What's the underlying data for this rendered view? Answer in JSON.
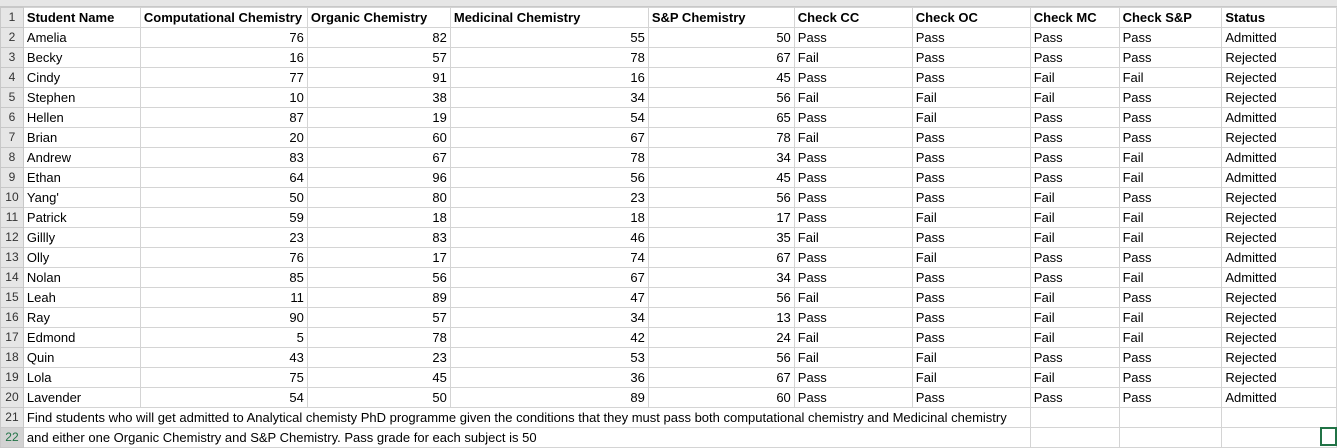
{
  "headers": [
    "Student Name",
    "Computational Chemistry",
    "Organic Chemistry",
    "Medicinal Chemistry",
    "S&P Chemistry",
    "Check CC",
    "Check OC",
    "Check MC",
    "Check S&P",
    "Status"
  ],
  "students": [
    {
      "name": "Amelia",
      "cc": "76",
      "oc": "82",
      "mc": "55",
      "sp": "50",
      "check_cc": "Pass",
      "check_oc": "Pass",
      "check_mc": "Pass",
      "check_sp": "Pass",
      "status": "Admitted"
    },
    {
      "name": "Becky",
      "cc": "16",
      "oc": "57",
      "mc": "78",
      "sp": "67",
      "check_cc": "Fail",
      "check_oc": "Pass",
      "check_mc": "Pass",
      "check_sp": "Pass",
      "status": "Rejected"
    },
    {
      "name": "Cindy",
      "cc": "77",
      "oc": "91",
      "mc": "16",
      "sp": "45",
      "check_cc": "Pass",
      "check_oc": "Pass",
      "check_mc": "Fail",
      "check_sp": "Fail",
      "status": "Rejected"
    },
    {
      "name": "Stephen",
      "cc": "10",
      "oc": "38",
      "mc": "34",
      "sp": "56",
      "check_cc": "Fail",
      "check_oc": "Fail",
      "check_mc": "Fail",
      "check_sp": "Pass",
      "status": "Rejected"
    },
    {
      "name": "Hellen",
      "cc": "87",
      "oc": "19",
      "mc": "54",
      "sp": "65",
      "check_cc": "Pass",
      "check_oc": "Fail",
      "check_mc": "Pass",
      "check_sp": "Pass",
      "status": "Admitted"
    },
    {
      "name": "Brian",
      "cc": "20",
      "oc": "60",
      "mc": "67",
      "sp": "78",
      "check_cc": "Fail",
      "check_oc": "Pass",
      "check_mc": "Pass",
      "check_sp": "Pass",
      "status": "Rejected"
    },
    {
      "name": "Andrew",
      "cc": "83",
      "oc": "67",
      "mc": "78",
      "sp": "34",
      "check_cc": "Pass",
      "check_oc": "Pass",
      "check_mc": "Pass",
      "check_sp": "Fail",
      "status": "Admitted"
    },
    {
      "name": "Ethan",
      "cc": "64",
      "oc": "96",
      "mc": "56",
      "sp": "45",
      "check_cc": "Pass",
      "check_oc": "Pass",
      "check_mc": "Pass",
      "check_sp": "Fail",
      "status": "Admitted"
    },
    {
      "name": "Yang'",
      "cc": "50",
      "oc": "80",
      "mc": "23",
      "sp": "56",
      "check_cc": "Pass",
      "check_oc": "Pass",
      "check_mc": "Fail",
      "check_sp": "Pass",
      "status": "Rejected"
    },
    {
      "name": "Patrick",
      "cc": "59",
      "oc": "18",
      "mc": "18",
      "sp": "17",
      "check_cc": "Pass",
      "check_oc": "Fail",
      "check_mc": "Fail",
      "check_sp": "Fail",
      "status": "Rejected"
    },
    {
      "name": "Gillly",
      "cc": "23",
      "oc": "83",
      "mc": "46",
      "sp": "35",
      "check_cc": "Fail",
      "check_oc": "Pass",
      "check_mc": "Fail",
      "check_sp": "Fail",
      "status": "Rejected"
    },
    {
      "name": "Olly",
      "cc": "76",
      "oc": "17",
      "mc": "74",
      "sp": "67",
      "check_cc": "Pass",
      "check_oc": "Fail",
      "check_mc": "Pass",
      "check_sp": "Pass",
      "status": "Admitted"
    },
    {
      "name": "Nolan",
      "cc": "85",
      "oc": "56",
      "mc": "67",
      "sp": "34",
      "check_cc": "Pass",
      "check_oc": "Pass",
      "check_mc": "Pass",
      "check_sp": "Fail",
      "status": "Admitted"
    },
    {
      "name": "Leah",
      "cc": "11",
      "oc": "89",
      "mc": "47",
      "sp": "56",
      "check_cc": "Fail",
      "check_oc": "Pass",
      "check_mc": "Fail",
      "check_sp": "Pass",
      "status": "Rejected"
    },
    {
      "name": "Ray",
      "cc": "90",
      "oc": "57",
      "mc": "34",
      "sp": "13",
      "check_cc": "Pass",
      "check_oc": "Pass",
      "check_mc": "Fail",
      "check_sp": "Fail",
      "status": "Rejected"
    },
    {
      "name": "Edmond",
      "cc": "5",
      "oc": "78",
      "mc": "42",
      "sp": "24",
      "check_cc": "Fail",
      "check_oc": "Pass",
      "check_mc": "Fail",
      "check_sp": "Fail",
      "status": "Rejected"
    },
    {
      "name": "Quin",
      "cc": "43",
      "oc": "23",
      "mc": "53",
      "sp": "56",
      "check_cc": "Fail",
      "check_oc": "Fail",
      "check_mc": "Pass",
      "check_sp": "Pass",
      "status": "Rejected"
    },
    {
      "name": "Lola",
      "cc": "75",
      "oc": "45",
      "mc": "36",
      "sp": "67",
      "check_cc": "Pass",
      "check_oc": "Fail",
      "check_mc": "Fail",
      "check_sp": "Pass",
      "status": "Rejected"
    },
    {
      "name": "Lavender",
      "cc": "54",
      "oc": "50",
      "mc": "89",
      "sp": "60",
      "check_cc": "Pass",
      "check_oc": "Pass",
      "check_mc": "Pass",
      "check_sp": "Pass",
      "status": "Admitted"
    }
  ],
  "notes": [
    "Find students who will get admitted to Analytical chemisty PhD programme given the conditions that they must pass both computational chemistry and Medicinal chemistry",
    "and either one Organic Chemistry and S&P Chemistry. Pass grade for each subject is 50"
  ],
  "row_numbers": [
    "1",
    "2",
    "3",
    "4",
    "5",
    "6",
    "7",
    "8",
    "9",
    "10",
    "11",
    "12",
    "13",
    "14",
    "15",
    "16",
    "17",
    "18",
    "19",
    "20",
    "21",
    "22"
  ]
}
